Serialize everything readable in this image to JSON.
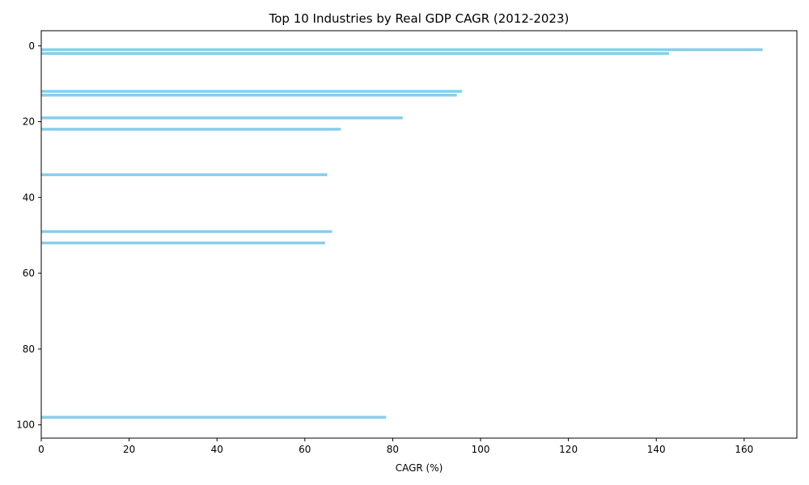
{
  "chart_data": {
    "type": "bar",
    "orientation": "horizontal",
    "title": "Top 10 Industries by Real GDP CAGR (2012-2023)",
    "xlabel": "CAGR (%)",
    "ylabel": "",
    "xlim": [
      0,
      172
    ],
    "ylim": [
      103.5,
      -4
    ],
    "y_inverted": true,
    "xticks": [
      0,
      20,
      40,
      60,
      80,
      100,
      120,
      140,
      160
    ],
    "yticks": [
      0,
      20,
      40,
      60,
      80,
      100
    ],
    "bar_color": "#87CEEB",
    "grid": false,
    "bars": [
      {
        "y": 1,
        "value": 164.2
      },
      {
        "y": 2,
        "value": 142.9
      },
      {
        "y": 12,
        "value": 95.8
      },
      {
        "y": 13,
        "value": 94.6
      },
      {
        "y": 19,
        "value": 82.3
      },
      {
        "y": 22,
        "value": 68.2
      },
      {
        "y": 34,
        "value": 65.1
      },
      {
        "y": 49,
        "value": 66.2
      },
      {
        "y": 52,
        "value": 64.6
      },
      {
        "y": 98,
        "value": 78.5
      }
    ]
  }
}
